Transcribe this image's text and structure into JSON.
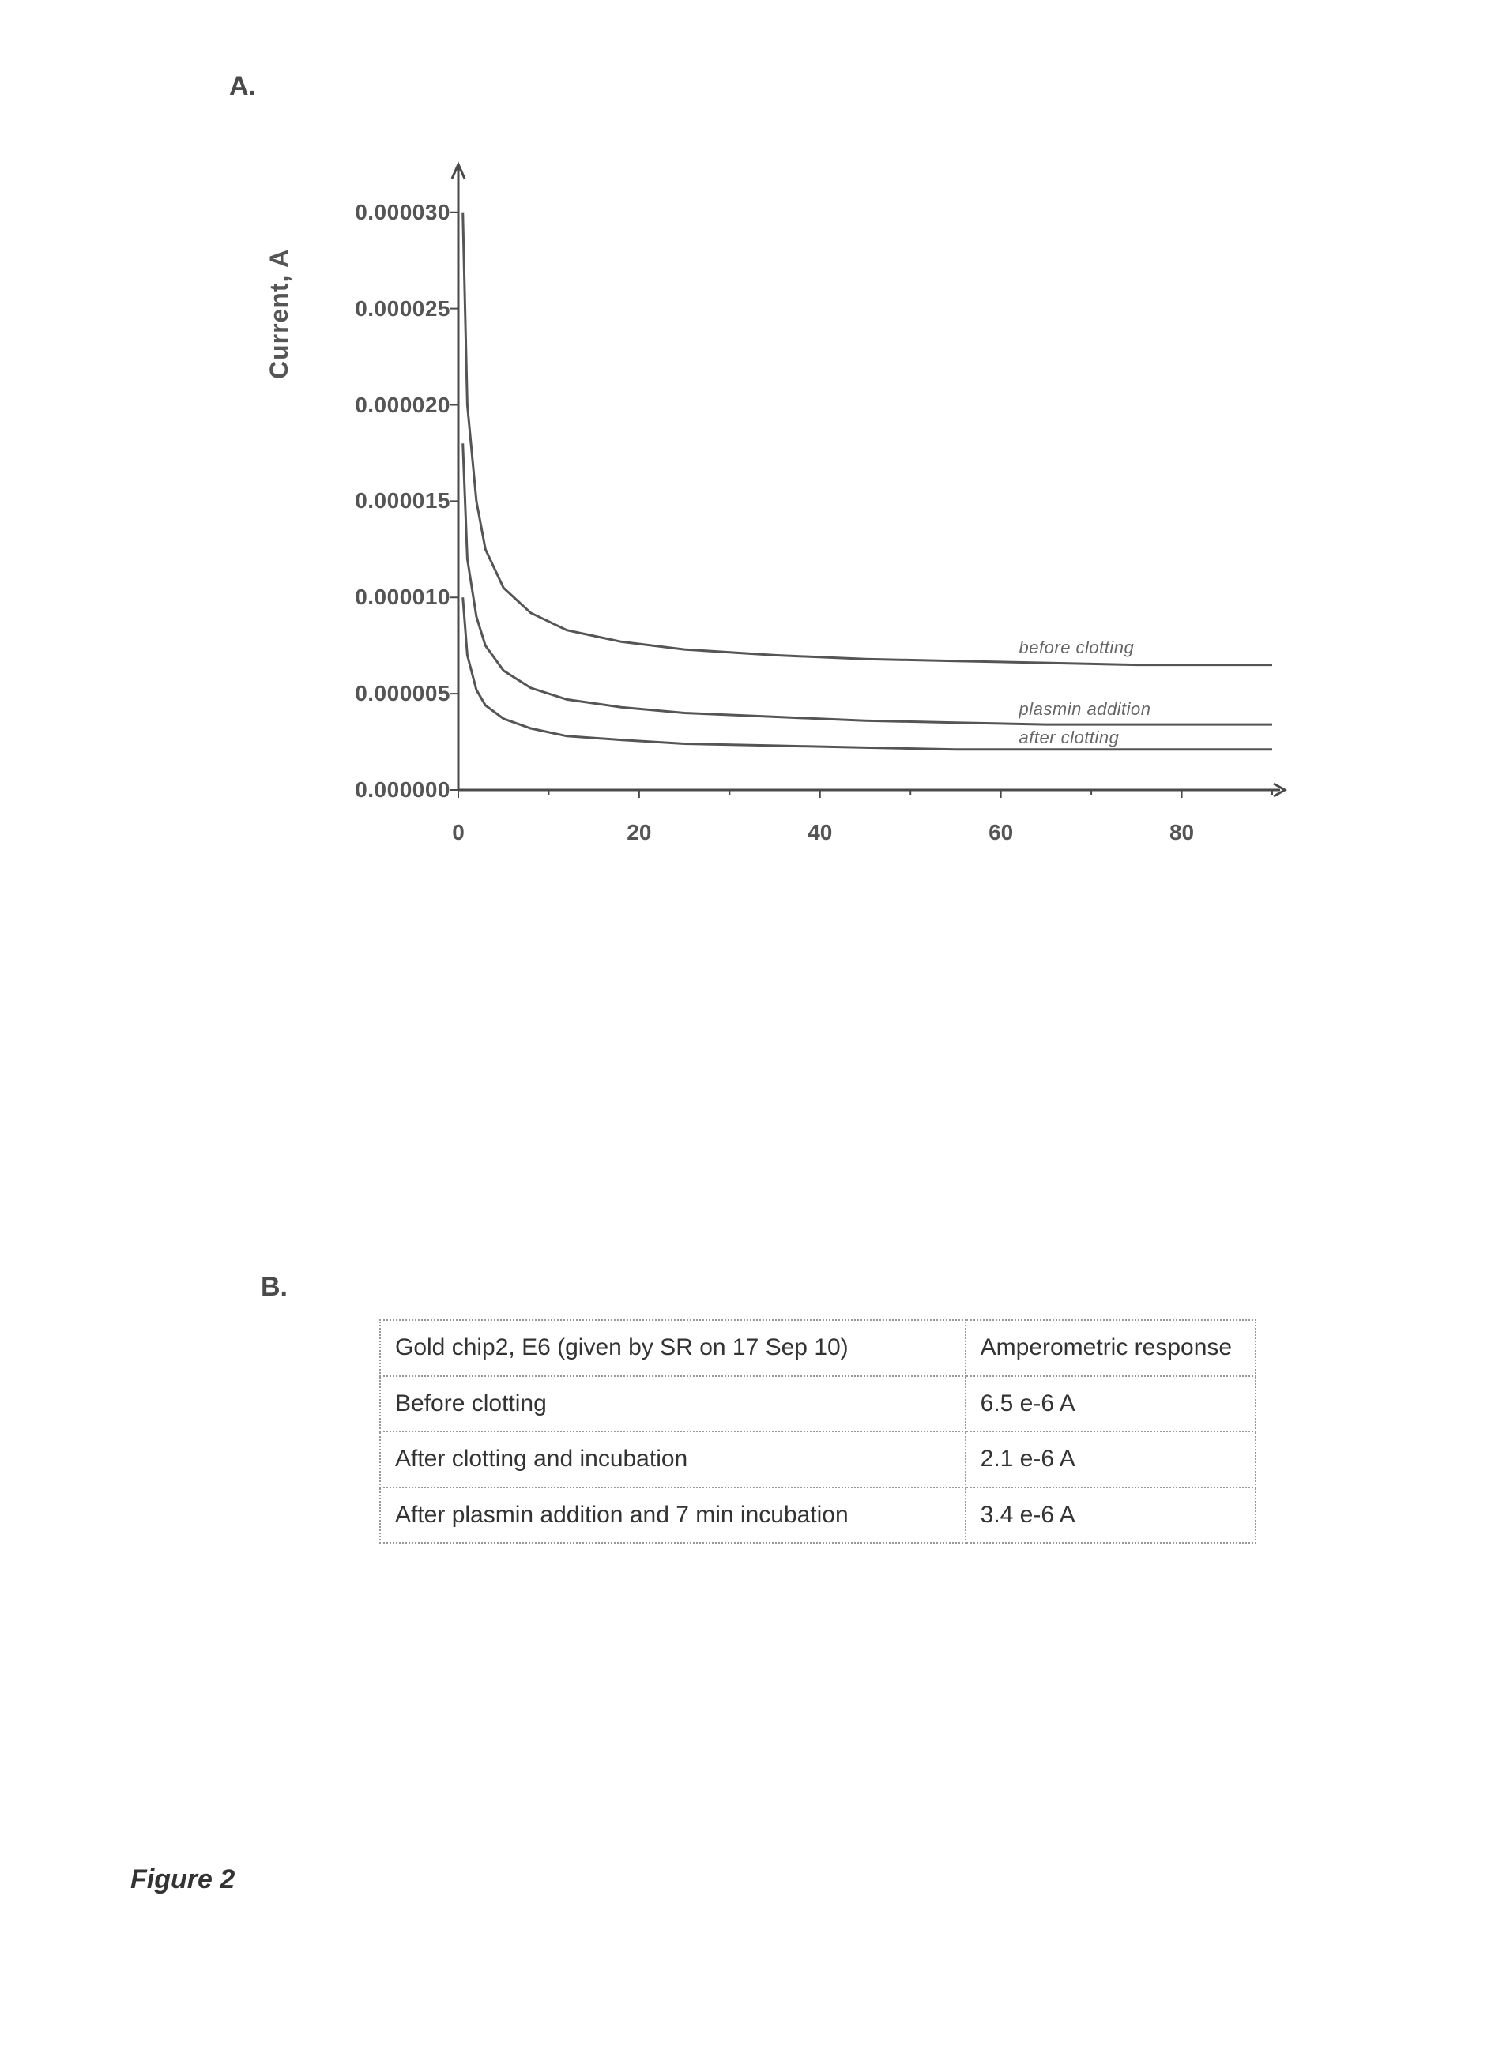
{
  "figure_caption": "Figure 2",
  "panel_a": {
    "label": "A.",
    "chart": {
      "type": "line",
      "ytitle": "Current, A",
      "xlim": [
        0,
        90
      ],
      "ylim": [
        0,
        3.2e-05
      ],
      "xticks": [
        0,
        20,
        40,
        60,
        80
      ],
      "xtick_labels": [
        "0",
        "20",
        "40",
        "60",
        "80"
      ],
      "yticks": [
        0,
        5e-06,
        1e-05,
        1.5e-05,
        2e-05,
        2.5e-05,
        3e-05
      ],
      "ytick_labels": [
        "0.000000",
        "0.000005",
        "0.000010",
        "0.000015",
        "0.000020",
        "0.000025",
        "0.000030"
      ],
      "tick_fontsize": 28,
      "title_fontsize": 32,
      "background_color": "#ffffff",
      "axis_color": "#4a4a4a",
      "line_width": 3,
      "line_color": "#555555",
      "series": [
        {
          "name": "before clotting",
          "label": "before clotting",
          "points": [
            [
              0.5,
              3e-05
            ],
            [
              1,
              2e-05
            ],
            [
              2,
              1.5e-05
            ],
            [
              3,
              1.25e-05
            ],
            [
              5,
              1.05e-05
            ],
            [
              8,
              9.2e-06
            ],
            [
              12,
              8.3e-06
            ],
            [
              18,
              7.7e-06
            ],
            [
              25,
              7.3e-06
            ],
            [
              35,
              7e-06
            ],
            [
              45,
              6.8e-06
            ],
            [
              55,
              6.7e-06
            ],
            [
              65,
              6.6e-06
            ],
            [
              75,
              6.5e-06
            ],
            [
              85,
              6.5e-06
            ],
            [
              90,
              6.5e-06
            ]
          ]
        },
        {
          "name": "plasmin addition",
          "label": "plasmin addition",
          "points": [
            [
              0.5,
              1.8e-05
            ],
            [
              1,
              1.2e-05
            ],
            [
              2,
              9e-06
            ],
            [
              3,
              7.5e-06
            ],
            [
              5,
              6.2e-06
            ],
            [
              8,
              5.3e-06
            ],
            [
              12,
              4.7e-06
            ],
            [
              18,
              4.3e-06
            ],
            [
              25,
              4e-06
            ],
            [
              35,
              3.8e-06
            ],
            [
              45,
              3.6e-06
            ],
            [
              55,
              3.5e-06
            ],
            [
              65,
              3.4e-06
            ],
            [
              75,
              3.4e-06
            ],
            [
              85,
              3.4e-06
            ],
            [
              90,
              3.4e-06
            ]
          ]
        },
        {
          "name": "after clotting",
          "label": "after clotting",
          "points": [
            [
              0.5,
              1e-05
            ],
            [
              1,
              7e-06
            ],
            [
              2,
              5.2e-06
            ],
            [
              3,
              4.4e-06
            ],
            [
              5,
              3.7e-06
            ],
            [
              8,
              3.2e-06
            ],
            [
              12,
              2.8e-06
            ],
            [
              18,
              2.6e-06
            ],
            [
              25,
              2.4e-06
            ],
            [
              35,
              2.3e-06
            ],
            [
              45,
              2.2e-06
            ],
            [
              55,
              2.1e-06
            ],
            [
              65,
              2.1e-06
            ],
            [
              75,
              2.1e-06
            ],
            [
              85,
              2.1e-06
            ],
            [
              90,
              2.1e-06
            ]
          ]
        }
      ]
    }
  },
  "panel_b": {
    "label": "B.",
    "table": {
      "columns": [
        "Gold chip2, E6 (given by SR on 17 Sep 10)",
        "Amperometric response"
      ],
      "rows": [
        [
          "Before clotting",
          "6.5 e-6 A"
        ],
        [
          "After clotting and incubation",
          "2.1 e-6 A"
        ],
        [
          "After plasmin addition and 7 min incubation",
          "3.4 e-6 A"
        ]
      ],
      "border_color": "#999999",
      "font_size": 30,
      "text_color": "#333333"
    }
  }
}
